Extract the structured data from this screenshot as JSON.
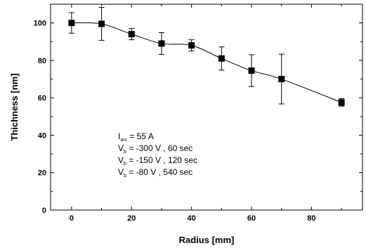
{
  "chart_data": {
    "type": "scatter",
    "title": "",
    "xlabel": "Radius [mm]",
    "ylabel": "Thichness [nm]",
    "xlim": [
      -7,
      97
    ],
    "ylim": [
      0,
      110
    ],
    "xticks": [
      0,
      20,
      40,
      60,
      80
    ],
    "yticks": [
      0,
      20,
      40,
      60,
      80,
      100
    ],
    "grid": false,
    "series": [
      {
        "x": [
          0,
          10,
          20,
          30,
          40,
          50,
          60,
          70,
          90
        ],
        "y": [
          100,
          99.5,
          94,
          89,
          88,
          81,
          74.5,
          70,
          57.5
        ],
        "err": [
          5.5,
          8.8,
          3,
          5.8,
          3,
          6.2,
          8.5,
          13.3,
          2
        ],
        "marker": "square",
        "color": "#000000",
        "fit_line": true
      }
    ],
    "annotations": [
      {
        "main": "I",
        "sub": "arc",
        "rest": " = 55 A"
      },
      {
        "main": "V",
        "sub": "b",
        "rest": " = -300 V ,  60 sec"
      },
      {
        "main": "V",
        "sub": "b",
        "rest": " = -150 V , 120 sec"
      },
      {
        "main": "V",
        "sub": "b",
        "rest": " =   -80 V , 540 sec"
      }
    ]
  }
}
